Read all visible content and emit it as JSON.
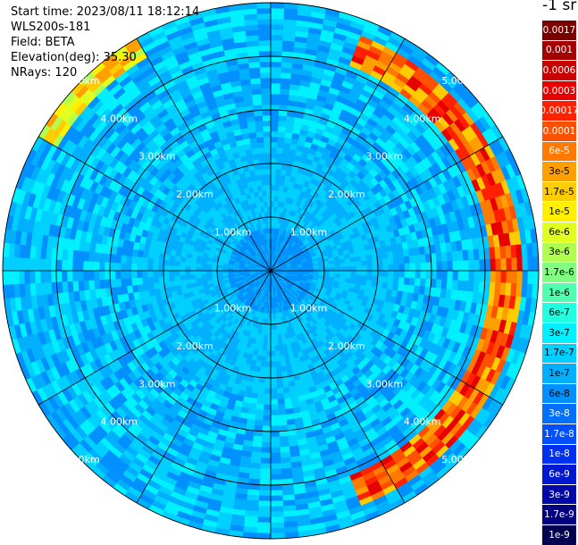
{
  "info": {
    "start_time": "Start time: 2023/08/11 18:12:14",
    "instrument": "WLS200s-181",
    "field": "Field: BETA",
    "elevation": "Elevation(deg): 35.30",
    "nrays": "NRays: 120"
  },
  "colorbar": {
    "units_label": "-1 sr",
    "ticks": [
      {
        "label": "0.0017",
        "color": "#7a0000",
        "text_color": "#ffffff"
      },
      {
        "label": "0.001",
        "color": "#a50000",
        "text_color": "#ffffff"
      },
      {
        "label": "0.0006",
        "color": "#c80000",
        "text_color": "#ffffff"
      },
      {
        "label": "0.0003",
        "color": "#e60000",
        "text_color": "#ffffff"
      },
      {
        "label": "0.00017",
        "color": "#ff2000",
        "text_color": "#ffffff"
      },
      {
        "label": "0.0001",
        "color": "#ff5000",
        "text_color": "#ffffff"
      },
      {
        "label": "6e-5",
        "color": "#ff7a00",
        "text_color": "#ffffff"
      },
      {
        "label": "3e-5",
        "color": "#ffa000",
        "text_color": "#000000"
      },
      {
        "label": "1.7e-5",
        "color": "#ffcc00",
        "text_color": "#000000"
      },
      {
        "label": "1e-5",
        "color": "#fff000",
        "text_color": "#000000"
      },
      {
        "label": "6e-6",
        "color": "#e0ff20",
        "text_color": "#000000"
      },
      {
        "label": "3e-6",
        "color": "#b0ff50",
        "text_color": "#000000"
      },
      {
        "label": "1.7e-6",
        "color": "#80ff80",
        "text_color": "#000000"
      },
      {
        "label": "1e-6",
        "color": "#50ffb0",
        "text_color": "#000000"
      },
      {
        "label": "6e-7",
        "color": "#20ffe0",
        "text_color": "#000000"
      },
      {
        "label": "3e-7",
        "color": "#00f0ff",
        "text_color": "#000000"
      },
      {
        "label": "1.7e-7",
        "color": "#00d0ff",
        "text_color": "#000000"
      },
      {
        "label": "1e-7",
        "color": "#00b0ff",
        "text_color": "#000000"
      },
      {
        "label": "6e-8",
        "color": "#0090ff",
        "text_color": "#000000"
      },
      {
        "label": "3e-8",
        "color": "#0070ff",
        "text_color": "#ffffff"
      },
      {
        "label": "1.7e-8",
        "color": "#0050ff",
        "text_color": "#ffffff"
      },
      {
        "label": "1e-8",
        "color": "#0030f0",
        "text_color": "#ffffff"
      },
      {
        "label": "6e-9",
        "color": "#0018d0",
        "text_color": "#ffffff"
      },
      {
        "label": "3e-9",
        "color": "#0008a8",
        "text_color": "#ffffff"
      },
      {
        "label": "1.7e-9",
        "color": "#000080",
        "text_color": "#ffffff"
      },
      {
        "label": "1e-9",
        "color": "#000050",
        "text_color": "#ffffff"
      }
    ]
  },
  "chart_data": {
    "type": "heatmap",
    "projection": "polar (PPI scan)",
    "field": "BETA",
    "nrays": 120,
    "range_rings_km": [
      1,
      2,
      3,
      4,
      5
    ],
    "range_ring_labels": [
      "1.00km",
      "2.00km",
      "3.00km",
      "4.00km",
      "5.00km"
    ],
    "spokes_deg": [
      0,
      30,
      60,
      90,
      120,
      150,
      180,
      210,
      240,
      270,
      300,
      330
    ],
    "max_range_km": 5.0,
    "features": [
      {
        "description": "high backscatter arc",
        "azimuth_range_deg": [
          20,
          160
        ],
        "range_km": [
          4.1,
          4.7
        ],
        "value_range": [
          "1.7e-5",
          "0.0003"
        ]
      },
      {
        "description": "elevated arc",
        "azimuth_range_deg": [
          300,
          330
        ],
        "range_km": [
          4.6,
          5.0
        ],
        "value_range": [
          "3e-6",
          "3e-5"
        ]
      },
      {
        "description": "minimum near centre",
        "range_km": [
          0,
          0.8
        ],
        "value_range": [
          "3e-8",
          "6e-8"
        ]
      }
    ]
  }
}
